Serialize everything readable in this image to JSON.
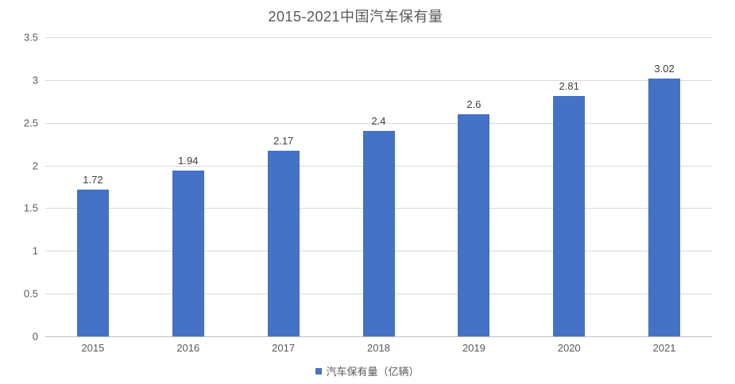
{
  "chart_data": {
    "type": "bar",
    "title": "2015-2021中国汽车保有量",
    "categories": [
      "2015",
      "2016",
      "2017",
      "2018",
      "2019",
      "2020",
      "2021"
    ],
    "series": [
      {
        "name": "汽车保有量（亿辆）",
        "values": [
          1.72,
          1.94,
          2.17,
          2.4,
          2.6,
          2.81,
          3.02
        ],
        "data_labels": [
          "1.72",
          "1.94",
          "2.17",
          "2.4",
          "2.6",
          "2.81",
          "3.02"
        ],
        "color": "#4472C4"
      }
    ],
    "xlabel": "",
    "ylabel": "",
    "ylim": [
      0,
      3.5
    ],
    "ytick_step": 0.5,
    "ytick_labels": [
      "0",
      "0.5",
      "1",
      "1.5",
      "2",
      "2.5",
      "3",
      "3.5"
    ],
    "grid": true,
    "gridline_color": "#D9D9D9",
    "legend_position": "bottom",
    "legend_entries": [
      "汽车保有量（亿辆）"
    ],
    "title_color": "#595959",
    "axis_text_color": "#595959",
    "data_label_color": "#404040"
  }
}
